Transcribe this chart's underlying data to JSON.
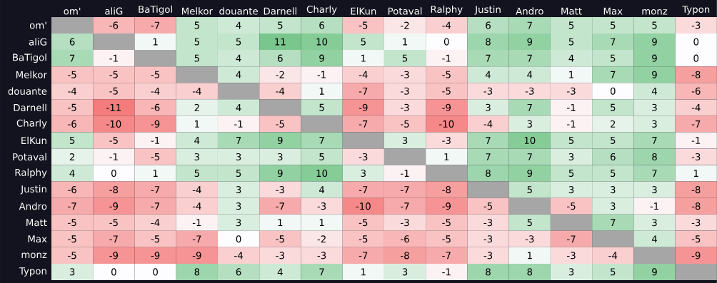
{
  "chart_data": {
    "type": "heatmap",
    "categories": [
      "om'",
      "aliG",
      "BaTigol",
      "Melkor",
      "douante",
      "Darnell",
      "Charly",
      "ElKun",
      "Potaval",
      "Ralphy",
      "Justin",
      "Andro",
      "Matt",
      "Max",
      "monz",
      "Typon"
    ],
    "y_categories": [
      "om'",
      "aliG",
      "BaTigol",
      "Melkor",
      "douante",
      "Darnell",
      "Charly",
      "ElKun",
      "Potaval",
      "Ralphy",
      "Justin",
      "Andro",
      "Matt",
      "Max",
      "monz",
      "Typon"
    ],
    "cells": [
      [
        null,
        -6,
        -7,
        5,
        4,
        5,
        6,
        -5,
        -2,
        -4,
        6,
        7,
        5,
        5,
        5,
        -3
      ],
      [
        6,
        null,
        1,
        5,
        5,
        11,
        10,
        5,
        1,
        0,
        8,
        9,
        5,
        7,
        9,
        0
      ],
      [
        7,
        -1,
        null,
        5,
        4,
        6,
        9,
        1,
        5,
        -1,
        7,
        7,
        4,
        5,
        9,
        0
      ],
      [
        -5,
        -5,
        -5,
        null,
        4,
        -2,
        -1,
        -4,
        -3,
        -5,
        4,
        4,
        1,
        7,
        9,
        -8
      ],
      [
        -4,
        -5,
        -4,
        -4,
        null,
        -4,
        1,
        -7,
        -3,
        -5,
        -3,
        -3,
        -3,
        0,
        4,
        -6
      ],
      [
        -5,
        -11,
        -6,
        2,
        4,
        null,
        5,
        -9,
        -3,
        -9,
        3,
        7,
        -1,
        5,
        3,
        -4
      ],
      [
        -6,
        -10,
        -9,
        1,
        -1,
        -5,
        null,
        -7,
        -5,
        -10,
        -4,
        3,
        -1,
        2,
        3,
        -7
      ],
      [
        5,
        -5,
        -1,
        4,
        7,
        9,
        7,
        null,
        3,
        -3,
        7,
        10,
        5,
        5,
        7,
        -1
      ],
      [
        2,
        -1,
        -5,
        3,
        3,
        3,
        5,
        -3,
        null,
        1,
        7,
        7,
        3,
        6,
        8,
        -3
      ],
      [
        4,
        0,
        1,
        5,
        5,
        9,
        10,
        3,
        -1,
        null,
        8,
        9,
        5,
        5,
        7,
        1
      ],
      [
        -6,
        -8,
        -7,
        -4,
        3,
        -3,
        4,
        -7,
        -7,
        -8,
        null,
        5,
        3,
        3,
        3,
        -8
      ],
      [
        -7,
        -9,
        -7,
        -4,
        3,
        -7,
        -3,
        -10,
        -7,
        -9,
        -5,
        null,
        -5,
        3,
        -1,
        -8
      ],
      [
        -5,
        -5,
        -4,
        -1,
        3,
        1,
        1,
        -5,
        -3,
        -5,
        -3,
        5,
        null,
        7,
        3,
        -3
      ],
      [
        -5,
        -7,
        -5,
        -7,
        0,
        -5,
        -2,
        -5,
        -6,
        -5,
        -3,
        -3,
        -7,
        null,
        4,
        -5
      ],
      [
        -5,
        -9,
        -9,
        -9,
        -4,
        -3,
        -3,
        -7,
        -8,
        -7,
        -3,
        1,
        -3,
        -4,
        null,
        -9
      ],
      [
        3,
        0,
        0,
        8,
        6,
        4,
        7,
        1,
        3,
        -1,
        8,
        8,
        3,
        5,
        9,
        null
      ]
    ],
    "data_labels": true
  }
}
